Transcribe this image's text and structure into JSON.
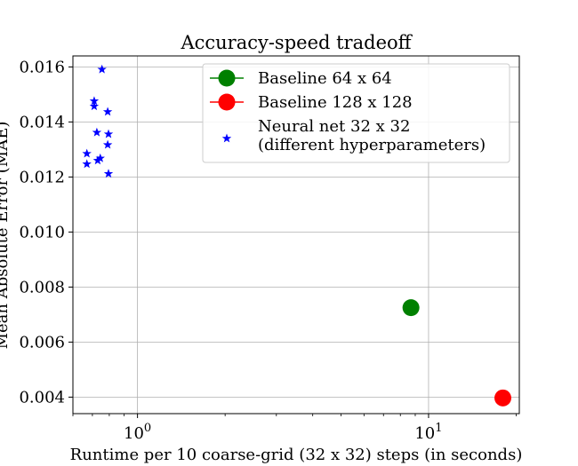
{
  "chart_data": {
    "type": "scatter",
    "title": "Accuracy-speed tradeoff",
    "xlabel": "Runtime per 10 coarse-grid (32 x 32) steps (in seconds)",
    "ylabel": "Mean Absolute Error (MAE)",
    "xscale": "log",
    "xlim": [
      0.6,
      20.5
    ],
    "ylim": [
      0.0034,
      0.0164
    ],
    "yticks": [
      "0.004",
      "0.006",
      "0.008",
      "0.010",
      "0.012",
      "0.014",
      "0.016"
    ],
    "xticks_major": [
      "10^0",
      "10^1"
    ],
    "grid": true,
    "legend_position": "upper center",
    "series": [
      {
        "name": "Baseline 64 x 64",
        "marker": "circle",
        "color": "#008000",
        "points": [
          {
            "x": 8.7,
            "y": 0.00725
          }
        ]
      },
      {
        "name": "Baseline 128 x 128",
        "marker": "circle",
        "color": "#ff0000",
        "points": [
          {
            "x": 18.0,
            "y": 0.00397
          }
        ]
      },
      {
        "name": "Neural net 32 x 32\n(different hyperparameters)",
        "marker": "star",
        "color": "#0000ff",
        "points": [
          {
            "x": 0.755,
            "y": 0.01591
          },
          {
            "x": 0.71,
            "y": 0.01476
          },
          {
            "x": 0.71,
            "y": 0.01457
          },
          {
            "x": 0.79,
            "y": 0.01437
          },
          {
            "x": 0.725,
            "y": 0.01362
          },
          {
            "x": 0.795,
            "y": 0.01356
          },
          {
            "x": 0.79,
            "y": 0.01317
          },
          {
            "x": 0.67,
            "y": 0.01285
          },
          {
            "x": 0.745,
            "y": 0.01268
          },
          {
            "x": 0.73,
            "y": 0.0126
          },
          {
            "x": 0.67,
            "y": 0.01247
          },
          {
            "x": 0.795,
            "y": 0.01212
          }
        ]
      }
    ]
  }
}
